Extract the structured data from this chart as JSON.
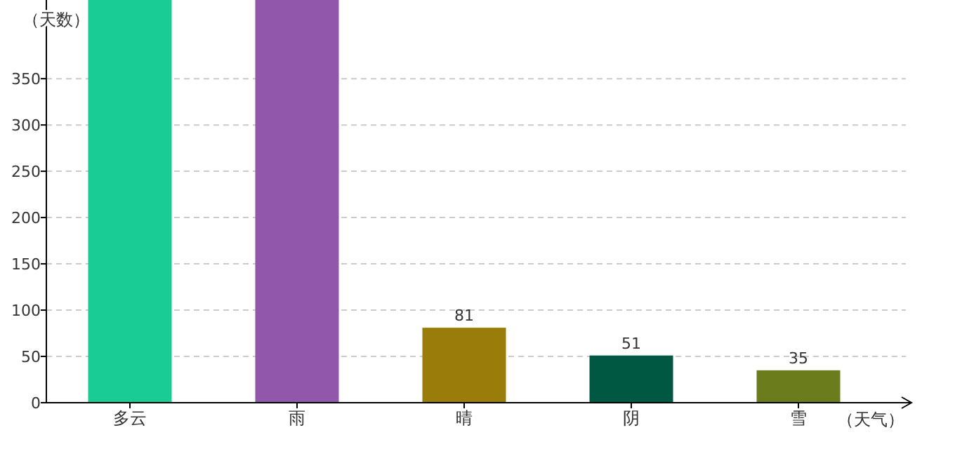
{
  "chart_data": {
    "type": "bar",
    "ylabel": "（天数）",
    "xlabel": "（天气）",
    "categories": [
      "多云",
      "雨",
      "晴",
      "阴",
      "雪"
    ],
    "values": [
      435,
      435,
      81,
      51,
      35
    ],
    "colors": [
      "#19cc95",
      "#9157ab",
      "#9a7c0a",
      "#005843",
      "#6a7c1c"
    ],
    "value_labels": [
      null,
      null,
      "81",
      "51",
      "35"
    ],
    "ylim": [
      0,
      435
    ],
    "yticks": [
      0,
      50,
      100,
      150,
      200,
      250,
      300,
      350
    ],
    "grid": "y"
  }
}
